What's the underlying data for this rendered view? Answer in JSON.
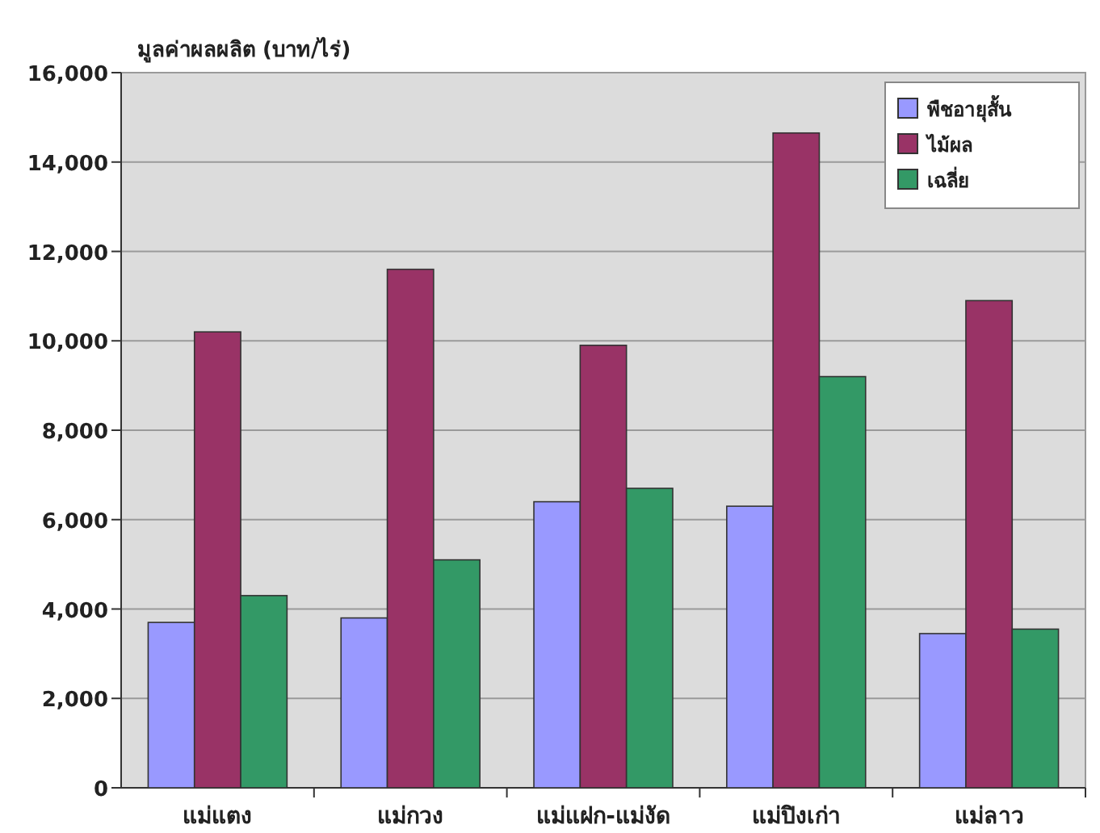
{
  "chart_data": {
    "type": "bar",
    "ylabel": "มูลค่าผลผลิต (บาท/ไร่)",
    "categories": [
      "แม่แตง",
      "แม่กวง",
      "แม่แฝก-แม่งัด",
      "แม่ปิงเก่า",
      "แม่ลาว"
    ],
    "series": [
      {
        "name": "พืชอายุสั้น",
        "color": "#9999ff",
        "values": [
          3700,
          3800,
          6400,
          6300,
          3450
        ]
      },
      {
        "name": "ไม้ผล",
        "color": "#993366",
        "values": [
          10200,
          11600,
          9900,
          14650,
          10900
        ]
      },
      {
        "name": "เฉลี่ย",
        "color": "#339966",
        "values": [
          4300,
          5100,
          6700,
          9200,
          3550
        ]
      }
    ],
    "ylim": [
      0,
      16000
    ],
    "yticks": [
      0,
      {
        "value": 2000,
        "label": "2,000"
      },
      {
        "value": 4000,
        "label": "4,000"
      },
      {
        "value": 6000,
        "label": "6,000"
      },
      {
        "value": 8000,
        "label": "8,000"
      },
      {
        "value": 10000,
        "label": "10,000"
      },
      {
        "value": 12000,
        "label": "12,000"
      },
      {
        "value": 14000,
        "label": "14,000"
      },
      {
        "value": 16000,
        "label": "16,000"
      }
    ],
    "grid": "y",
    "legend": "top right"
  }
}
